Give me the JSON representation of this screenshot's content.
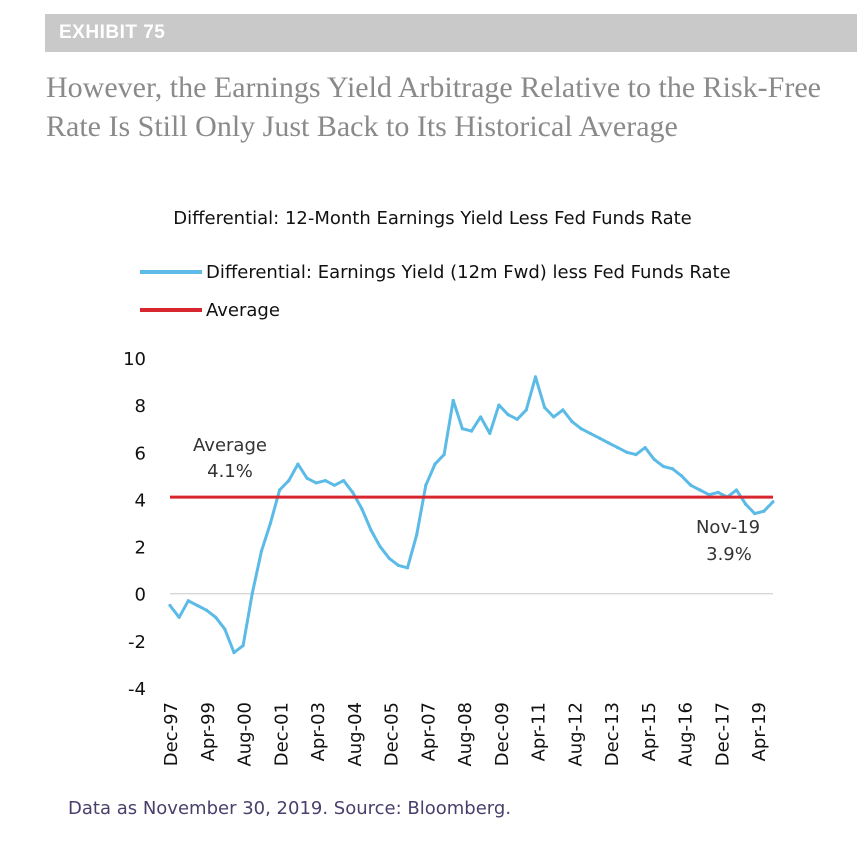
{
  "exhibit": {
    "label": "EXHIBIT 75"
  },
  "headline": "However, the Earnings Yield Arbitrage Relative to the Risk-Free Rate Is Still Only Just Back to Its Historical Average",
  "footnote": "Data as November 30, 2019. Source: Bloomberg.",
  "colors": {
    "series": "#5bbbe6",
    "average": "#d7262e",
    "exhibit_bar": "#c9c9c9",
    "headline": "#8a8a8a",
    "footnote": "#4a3f6b"
  },
  "chart_data": {
    "type": "line",
    "title": "Differential: 12-Month Earnings Yield Less Fed Funds Rate",
    "xlabel": "",
    "ylabel": "",
    "ylim": [
      -4,
      10
    ],
    "yticks": [
      "10",
      "8",
      "6",
      "4",
      "2",
      "0",
      "-2",
      "-4"
    ],
    "xticks": [
      "Dec-97",
      "Apr-99",
      "Aug-00",
      "Dec-01",
      "Apr-03",
      "Aug-04",
      "Dec-05",
      "Apr-07",
      "Aug-08",
      "Dec-09",
      "Apr-11",
      "Aug-12",
      "Dec-13",
      "Apr-15",
      "Aug-16",
      "Dec-17",
      "Apr-19"
    ],
    "grid": false,
    "legend": "top-left",
    "series": [
      {
        "name": "Differential: Earnings Yield (12m Fwd) less Fed Funds Rate",
        "color": "#5bbbe6",
        "x": [
          "Dec-97",
          "Apr-98",
          "Aug-98",
          "Dec-98",
          "Apr-99",
          "Aug-99",
          "Dec-99",
          "Apr-00",
          "Aug-00",
          "Dec-00",
          "Apr-01",
          "Aug-01",
          "Dec-01",
          "Apr-02",
          "Aug-02",
          "Dec-02",
          "Apr-03",
          "Aug-03",
          "Dec-03",
          "Apr-04",
          "Aug-04",
          "Dec-04",
          "Apr-05",
          "Aug-05",
          "Dec-05",
          "Apr-06",
          "Aug-06",
          "Dec-06",
          "Apr-07",
          "Aug-07",
          "Dec-07",
          "Apr-08",
          "Aug-08",
          "Dec-08",
          "Apr-09",
          "Aug-09",
          "Dec-09",
          "Apr-10",
          "Aug-10",
          "Dec-10",
          "Apr-11",
          "Aug-11",
          "Dec-11",
          "Apr-12",
          "Aug-12",
          "Dec-12",
          "Apr-13",
          "Aug-13",
          "Dec-13",
          "Apr-14",
          "Aug-14",
          "Dec-14",
          "Apr-15",
          "Aug-15",
          "Dec-15",
          "Apr-16",
          "Aug-16",
          "Dec-16",
          "Apr-17",
          "Aug-17",
          "Dec-17",
          "Apr-18",
          "Aug-18",
          "Dec-18",
          "Apr-19",
          "Aug-19",
          "Nov-19"
        ],
        "values": [
          -0.5,
          -1.0,
          -0.3,
          -0.5,
          -0.7,
          -1.0,
          -1.5,
          -2.5,
          -2.2,
          0.0,
          1.8,
          3.0,
          4.4,
          4.8,
          5.5,
          4.9,
          4.7,
          4.8,
          4.6,
          4.8,
          4.3,
          3.6,
          2.7,
          2.0,
          1.5,
          1.2,
          1.1,
          2.5,
          4.6,
          5.5,
          5.9,
          8.2,
          7.0,
          6.9,
          7.5,
          6.8,
          8.0,
          7.6,
          7.4,
          7.8,
          9.2,
          7.9,
          7.5,
          7.8,
          7.3,
          7.0,
          6.8,
          6.6,
          6.4,
          6.2,
          6.0,
          5.9,
          6.2,
          5.7,
          5.4,
          5.3,
          5.0,
          4.6,
          4.4,
          4.2,
          4.3,
          4.1,
          4.4,
          3.8,
          3.4,
          3.5,
          3.9
        ]
      },
      {
        "name": "Average",
        "color": "#d7262e",
        "value": 4.1
      }
    ],
    "annotations": [
      {
        "label": "Average",
        "value_text": "4.1%"
      },
      {
        "label": "Nov-19",
        "value_text": "3.9%"
      }
    ]
  }
}
